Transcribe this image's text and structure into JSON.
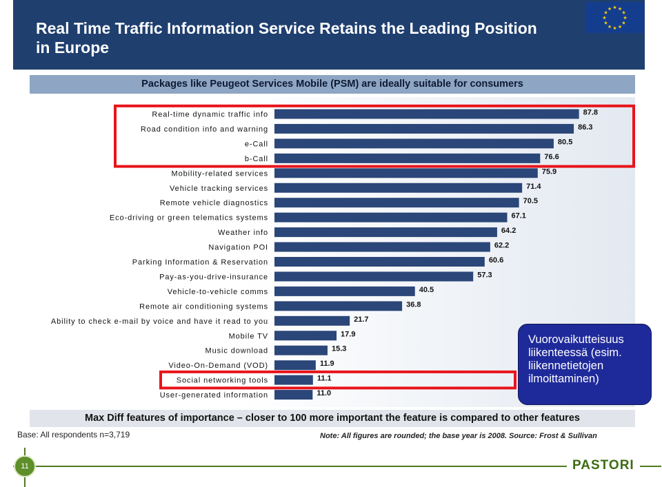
{
  "header": {
    "title": "Real Time Traffic Information Service Retains the Leading Position in Europe",
    "eu_flag_icon": "eu-flag-icon"
  },
  "subtitle": "Packages like Peugeot Services Mobile (PSM) are ideally suitable for consumers",
  "chart_data": {
    "type": "bar",
    "orientation": "horizontal",
    "categories": [
      "Real-time dynamic traffic info",
      "Road condition info and warning",
      "e-Call",
      "b-Call",
      "Mobility-related services",
      "Vehicle tracking services",
      "Remote vehicle diagnostics",
      "Eco-driving or green telematics systems",
      "Weather info",
      "Navigation POI",
      "Parking Information & Reservation",
      "Pay-as-you-drive-insurance",
      "Vehicle-to-vehicle comms",
      "Remote air conditioning systems",
      "Ability to check e-mail by voice and have it read to you",
      "Mobile TV",
      "Music download",
      "Video-On-Demand (VOD)",
      "Social networking tools",
      "User-generated information"
    ],
    "values": [
      87.8,
      86.3,
      80.5,
      76.6,
      75.9,
      71.4,
      70.5,
      67.1,
      64.2,
      62.2,
      60.6,
      57.3,
      40.5,
      36.8,
      21.7,
      17.9,
      15.3,
      11.9,
      11.1,
      11.0
    ],
    "value_labels": [
      "87.8",
      "86.3",
      "80.5",
      "76.6",
      "75.9",
      "71.4",
      "70.5",
      "67.1",
      "64.2",
      "62.2",
      "60.6",
      "57.3",
      "40.5",
      "36.8",
      "21.7",
      "17.9",
      "15.3",
      "11.9",
      "11.1",
      "11.0"
    ],
    "xlim": [
      0,
      100
    ],
    "grid": false,
    "bar_color": "#2b4678",
    "highlight_color": "#e8141b",
    "highlight_groups": [
      {
        "from": 0,
        "to": 3
      },
      {
        "from": 18,
        "to": 18
      }
    ]
  },
  "footer": "Max Diff features of importance – closer to 100 more important the feature is compared to other features",
  "base_note": "Base: All respondents n=3,719",
  "source_note": "Note: All figures are rounded; the base year is 2008. Source: Frost & Sullivan",
  "callout": {
    "lines": [
      "Vuorovaikutteisuus",
      "liikenteessä (esim.",
      "liikennetietojen",
      "ilmoittaminen)"
    ],
    "background": "#1f2a9a"
  },
  "page_number": "11",
  "brand": "PASTORI",
  "colors": {
    "header_bg": "#1f3f6e",
    "subtitle_bg": "#8ea6c3",
    "brand_green": "#3d6b12"
  }
}
